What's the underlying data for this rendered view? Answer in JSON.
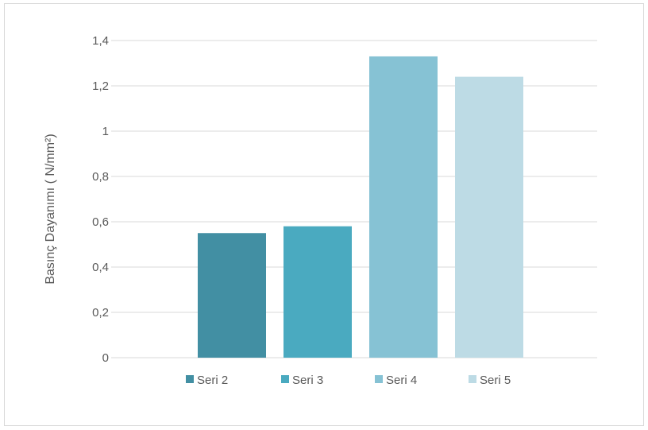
{
  "chart_data": {
    "type": "bar",
    "title": "",
    "xlabel": "",
    "ylabel": "Basınç Dayanımı ( N/mm²)",
    "ylim": [
      0,
      1.4
    ],
    "yticks": [
      "0",
      "0,2",
      "0,4",
      "0,6",
      "0,8",
      "1",
      "1,2",
      "1,4"
    ],
    "grid": true,
    "legend_position": "bottom",
    "series": [
      {
        "name": "Seri 2",
        "values": [
          0.55
        ],
        "color": "#428fa3"
      },
      {
        "name": "Seri 3",
        "values": [
          0.58
        ],
        "color": "#4aaac0"
      },
      {
        "name": "Seri 4",
        "values": [
          1.33
        ],
        "color": "#86c2d4"
      },
      {
        "name": "Seri 5",
        "values": [
          1.24
        ],
        "color": "#bddbe5"
      }
    ]
  }
}
